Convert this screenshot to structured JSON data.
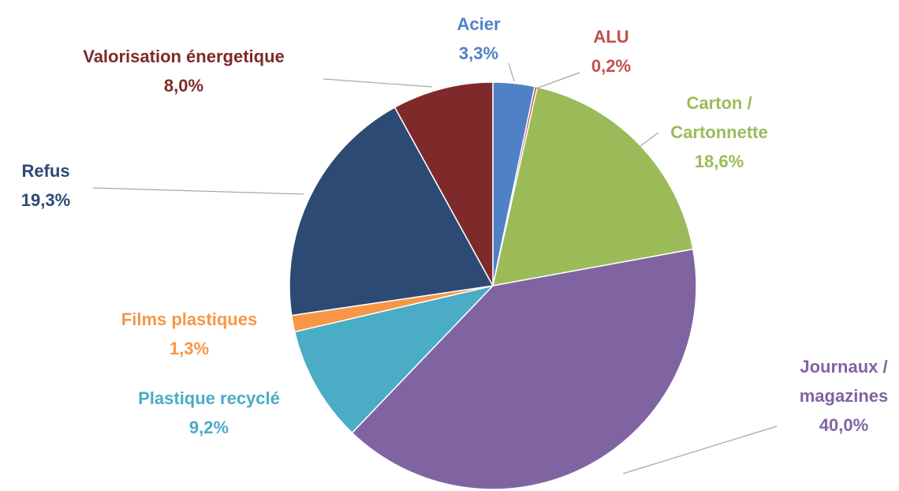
{
  "chart_data": {
    "type": "pie",
    "categories": [
      "Acier",
      "ALU",
      "Carton / Cartonnette",
      "Journaux / magazines",
      "Plastique recyclé",
      "Films plastiques",
      "Refus",
      "Valorisation énergetique"
    ],
    "values": [
      3.3,
      0.2,
      18.6,
      40.0,
      9.2,
      1.3,
      19.3,
      8.0
    ],
    "value_labels": [
      "3,3%",
      "0,2%",
      "18,6%",
      "40,0%",
      "9,2%",
      "1,3%",
      "19,3%",
      "8,0%"
    ],
    "colors": [
      "#4f81c7",
      "#c0504d",
      "#9bbb59",
      "#8064a2",
      "#4bacc6",
      "#f79646",
      "#2c4a74",
      "#7f2a2a"
    ]
  }
}
